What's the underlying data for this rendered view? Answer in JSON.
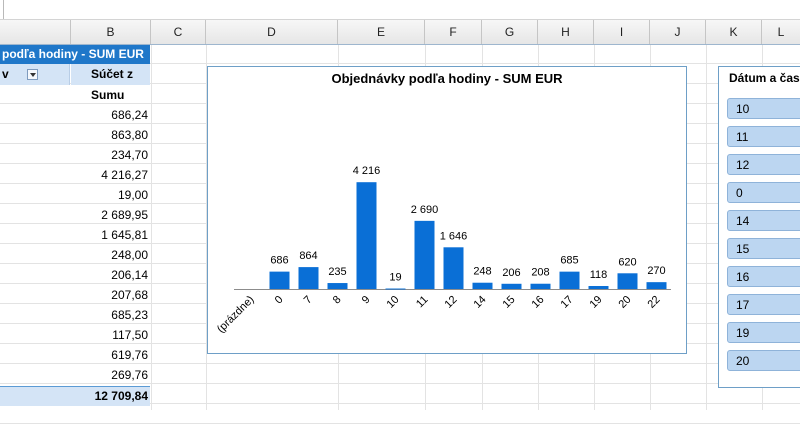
{
  "columns": [
    "B",
    "C",
    "D",
    "E",
    "F",
    "G",
    "H",
    "I",
    "J",
    "K",
    "L"
  ],
  "pivot": {
    "title": "podľa hodiny - SUM EUR",
    "row_header": "v",
    "value_header": "Súčet z Sumu",
    "values": [
      "",
      "686,24",
      "863,80",
      "234,70",
      "4 216,27",
      "19,00",
      "2 689,95",
      "1 645,81",
      "248,00",
      "206,14",
      "207,68",
      "685,23",
      "117,50",
      "619,76",
      "269,76"
    ],
    "total": "12 709,84"
  },
  "chart_data": {
    "type": "bar",
    "title": "Objednávky podľa hodiny - SUM EUR",
    "categories": [
      "(prázdne)",
      "0",
      "7",
      "8",
      "9",
      "10",
      "11",
      "12",
      "14",
      "15",
      "16",
      "17",
      "19",
      "20",
      "22"
    ],
    "values": [
      0,
      686,
      864,
      235,
      4216,
      19,
      2690,
      1646,
      248,
      206,
      208,
      685,
      118,
      620,
      270
    ],
    "data_labels": [
      "",
      "686",
      "864",
      "235",
      "4 216",
      "19",
      "2 690",
      "1 646",
      "248",
      "206",
      "208",
      "685",
      "118",
      "620",
      "270"
    ],
    "ylim": [
      0,
      4500
    ],
    "grid": false,
    "color": "#0a6fd6"
  },
  "slicer": {
    "title": "Dátum a čas",
    "items": [
      "10",
      "11",
      "12",
      "0",
      "14",
      "15",
      "16",
      "17",
      "19",
      "20"
    ]
  },
  "colors": {
    "pivot_title": "#1f77c9",
    "pivot_header": "#d4e4f6",
    "slicer_item": "#bcd6f1",
    "bar": "#0a6fd6"
  }
}
